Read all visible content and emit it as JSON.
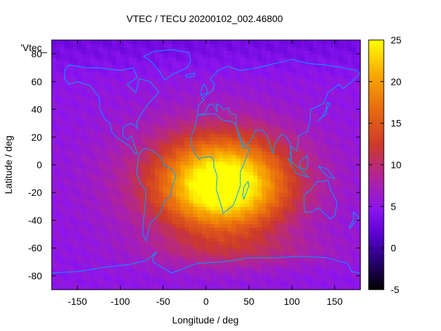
{
  "chart_data": {
    "type": "heatmap",
    "title": "VTEC / TECU 20200102_002.46800",
    "xlabel": "Longitude / deg",
    "ylabel": "Latitude / deg",
    "xlim": [
      -180,
      180
    ],
    "ylim": [
      -90,
      90
    ],
    "x_ticks": [
      -150,
      -100,
      -50,
      0,
      50,
      100,
      150
    ],
    "y_ticks": [
      -80,
      -60,
      -40,
      -20,
      0,
      20,
      40,
      60,
      80
    ],
    "key_label": "'Vtec_",
    "colorbar": {
      "range": [
        -5,
        25
      ],
      "ticks": [
        -5,
        0,
        5,
        10,
        15,
        20,
        25
      ],
      "palette": "gnuplot default (black-blue-purple-red-orange-yellow)"
    },
    "overlay": "coastlines",
    "coastline_color": "#00a0ff",
    "peak": {
      "lon": 20,
      "lat": -15,
      "value": 24
    },
    "background_value": 5
  }
}
